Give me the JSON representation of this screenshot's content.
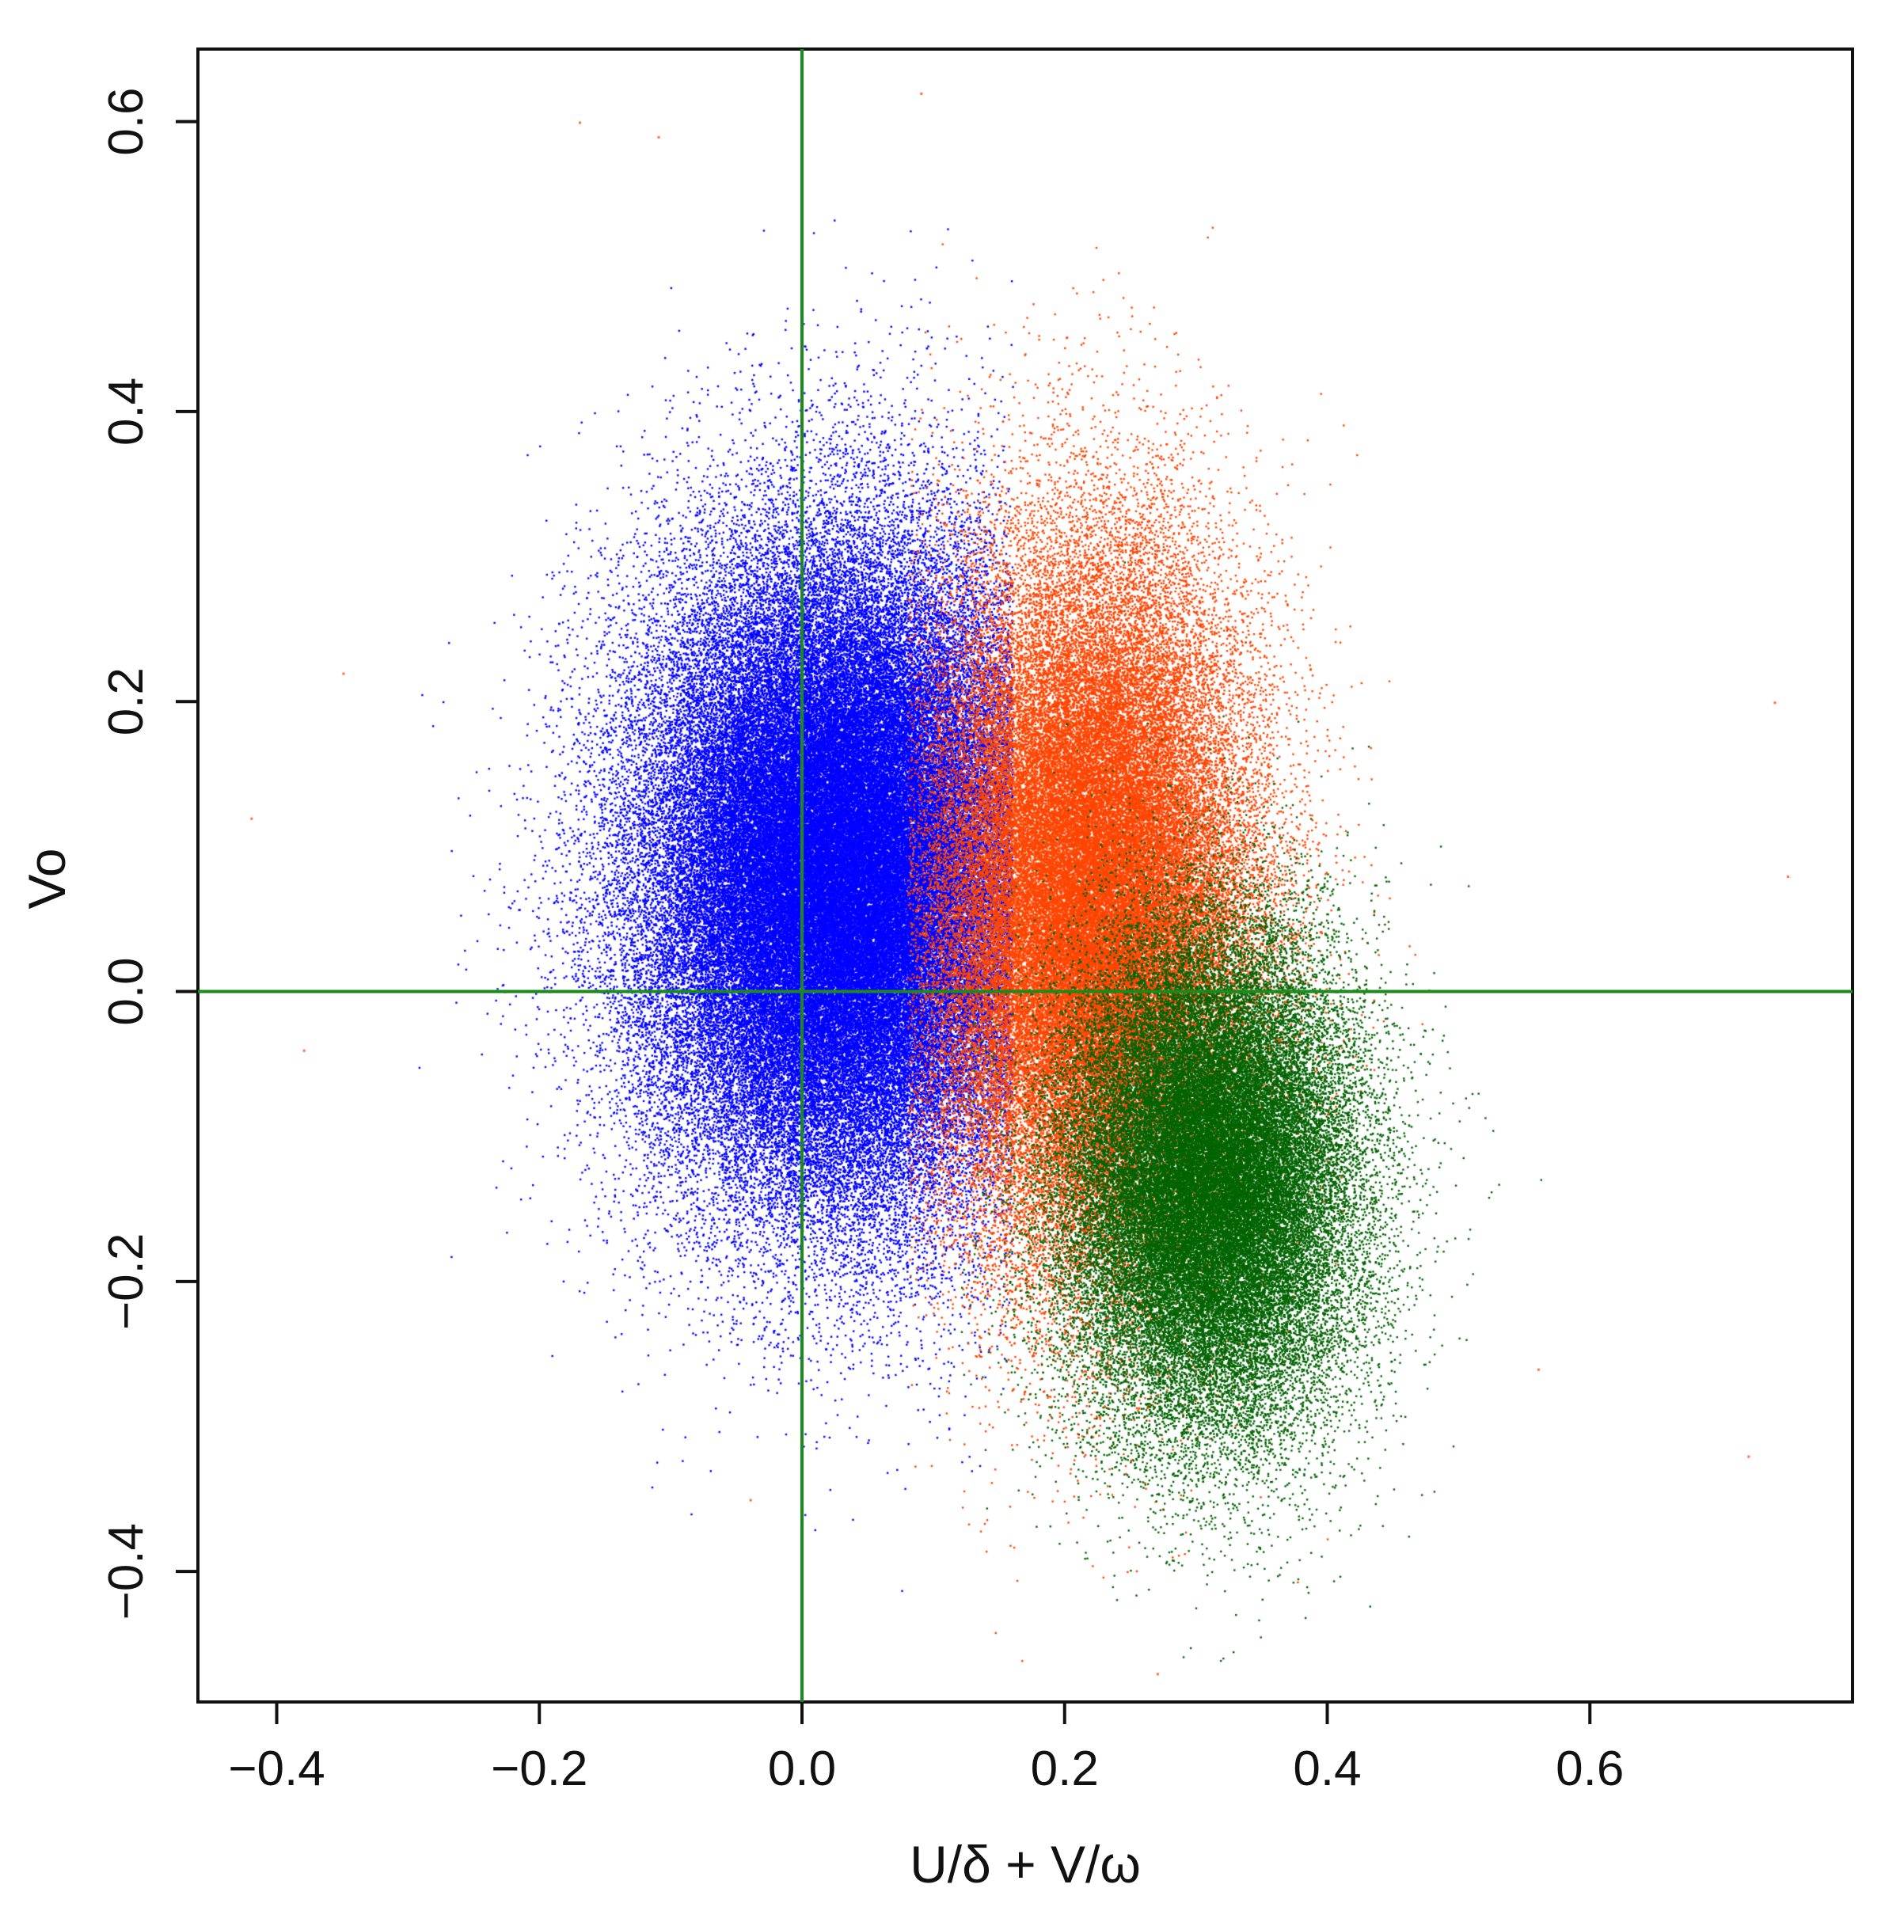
{
  "chart_data": {
    "type": "scatter",
    "title": "",
    "xlabel": "U/δ + V/ω",
    "ylabel": "Vo",
    "xlim": [
      -0.46,
      0.8
    ],
    "ylim": [
      -0.49,
      0.65
    ],
    "x_ticks": [
      -0.4,
      -0.2,
      0.0,
      0.2,
      0.4,
      0.6
    ],
    "x_tick_labels": [
      "−0.4",
      "−0.2",
      "0.0",
      "0.2",
      "0.4",
      "0.6"
    ],
    "y_ticks": [
      -0.4,
      -0.2,
      0.0,
      0.2,
      0.4,
      0.6
    ],
    "y_tick_labels": [
      "−0.4",
      "−0.2",
      "0.0",
      "0.2",
      "0.4",
      "0.6"
    ],
    "grid": false,
    "legend": "none",
    "reference_lines": [
      {
        "orientation": "vertical",
        "x": 0.0,
        "color": "#1a8a1a"
      },
      {
        "orientation": "horizontal",
        "y": 0.0,
        "color": "#1a8a1a"
      }
    ],
    "series": [
      {
        "color": "#0000ff",
        "center": [
          0.03,
          0.08
        ],
        "spread": [
          0.075,
          0.11
        ],
        "count": 110000,
        "x_range": [
          -0.43,
          0.16
        ]
      },
      {
        "color": "#ff4500",
        "center": [
          0.22,
          0.06
        ],
        "spread": [
          0.06,
          0.12
        ],
        "count": 70000,
        "x_range": [
          0.08,
          0.76
        ]
      },
      {
        "color": "#006400",
        "center": [
          0.31,
          -0.13
        ],
        "spread": [
          0.055,
          0.085
        ],
        "count": 50000,
        "x_range": [
          0.12,
          0.65
        ]
      }
    ],
    "approximate_points": [
      {
        "x": -0.17,
        "y": 0.6
      },
      {
        "x": -0.11,
        "y": 0.59
      },
      {
        "x": 0.09,
        "y": 0.62
      },
      {
        "x": -0.42,
        "y": 0.12
      },
      {
        "x": -0.35,
        "y": 0.22
      },
      {
        "x": 0.72,
        "y": -0.32
      },
      {
        "x": 0.74,
        "y": 0.2
      },
      {
        "x": 0.27,
        "y": -0.47
      },
      {
        "x": -0.04,
        "y": -0.35
      },
      {
        "x": 0.75,
        "y": 0.08
      },
      {
        "x": 0.56,
        "y": -0.26
      },
      {
        "x": -0.38,
        "y": -0.04
      }
    ]
  }
}
